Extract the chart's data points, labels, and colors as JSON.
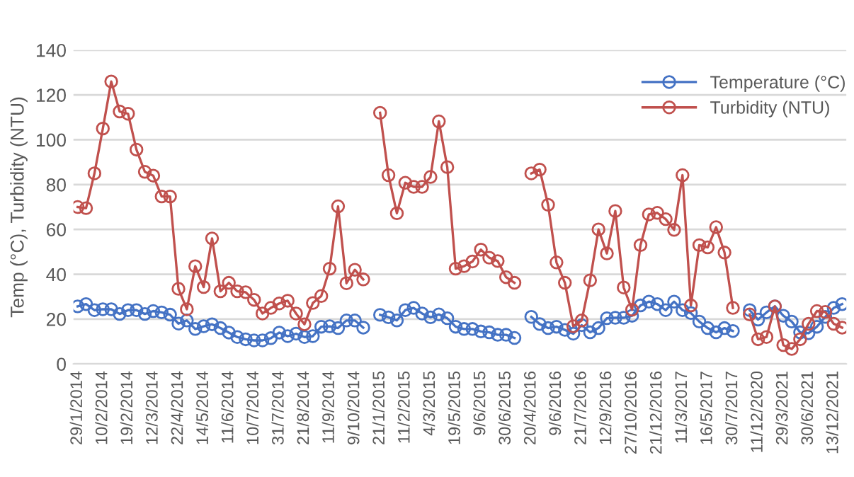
{
  "chart_data": {
    "type": "line",
    "ylabel": "Temp (°C), Turbidity (NTU)",
    "categories": [
      "29/1/2014",
      null,
      null,
      "10/2/2014",
      null,
      null,
      "19/2/2014",
      null,
      null,
      "12/3/2014",
      null,
      null,
      "22/4/2014",
      null,
      null,
      "14/5/2014",
      null,
      null,
      "11/6/2014",
      null,
      null,
      "10/7/2014",
      null,
      null,
      "31/7/2014",
      null,
      null,
      "21/8/2014",
      null,
      null,
      "11/9/2014",
      null,
      null,
      "9/10/2014",
      null,
      null,
      "21/1/2015",
      null,
      null,
      "11/2/2015",
      null,
      null,
      "4/3/2015",
      null,
      null,
      "19/5/2015",
      null,
      null,
      "9/6/2015",
      null,
      null,
      "30/6/2015",
      null,
      null,
      "20/4/2016",
      null,
      null,
      "9/6/2016",
      null,
      null,
      "21/7/2016",
      null,
      null,
      "12/9/2016",
      null,
      null,
      "27/10/2016",
      null,
      null,
      "21/12/2016",
      null,
      null,
      "11/3/2017",
      null,
      null,
      "16/5/2017",
      null,
      null,
      "30/7/2017",
      null,
      null,
      "11/12/2020",
      null,
      null,
      "29/3/2021",
      null,
      null,
      "30/6/2021",
      null,
      null,
      "13/12/2021",
      null
    ],
    "series": [
      {
        "name": "Temperature (°C)",
        "color": "#4472c4",
        "values": [
          25.7,
          26.7,
          24,
          24.4,
          24.4,
          22.3,
          24,
          24,
          22.3,
          23.6,
          23,
          22,
          18,
          19.4,
          15.6,
          16.8,
          17.7,
          16,
          14,
          12,
          11,
          10.5,
          10.5,
          11.5,
          14,
          12.4,
          13.5,
          12,
          12.4,
          16.6,
          16.8,
          16,
          19.4,
          19.4,
          16.2,
          null,
          21.9,
          20.8,
          19.4,
          24,
          25,
          22.5,
          20.8,
          22.1,
          20.4,
          16.6,
          15.6,
          15.6,
          14.5,
          14.1,
          13,
          13,
          11.6,
          null,
          21,
          17.8,
          16,
          16.6,
          15.2,
          13.5,
          17.3,
          14.1,
          16,
          20.4,
          20.6,
          20.6,
          21.5,
          26.1,
          27.8,
          26.7,
          24,
          27.8,
          24,
          22.7,
          18.9,
          16,
          14.1,
          16,
          14.7,
          null,
          24,
          19.8,
          23,
          25.7,
          21.5,
          18.9,
          14.1,
          13.7,
          16.6,
          21,
          25,
          26.7
        ]
      },
      {
        "name": "Turbidity (NTU)",
        "color": "#c0504d",
        "values": [
          70,
          69.5,
          85,
          105,
          126,
          112.6,
          111.6,
          95.6,
          85.7,
          84,
          74.7,
          74.7,
          33.5,
          24.4,
          43.6,
          34.3,
          56,
          32.4,
          36.2,
          32.4,
          32,
          28.6,
          22.5,
          25,
          27,
          28.2,
          22.5,
          17.7,
          27.2,
          30.3,
          42.5,
          70.3,
          36,
          42,
          37.7,
          null,
          112,
          84.2,
          67.2,
          80.8,
          79,
          79,
          83.4,
          108.2,
          87.8,
          42.5,
          43.6,
          45.7,
          51,
          47.4,
          45.9,
          38.7,
          36.2,
          null,
          85,
          86.7,
          71,
          45.3,
          36.2,
          16.8,
          19.4,
          37.3,
          60,
          49.3,
          68.2,
          34.1,
          24.2,
          53,
          66.7,
          67.4,
          64.6,
          59.8,
          84.2,
          26.1,
          53,
          52,
          61,
          49.7,
          25,
          null,
          22.1,
          11,
          12,
          25.7,
          8.4,
          6.7,
          11,
          17.9,
          23.6,
          23.2,
          17.9,
          16.2
        ]
      }
    ],
    "ylim": [
      0,
      140
    ],
    "yticks": [
      0,
      20,
      40,
      60,
      80,
      100,
      120,
      140
    ],
    "grid": "y",
    "legend": "top right",
    "marker": "circle",
    "line_style": "solid"
  }
}
